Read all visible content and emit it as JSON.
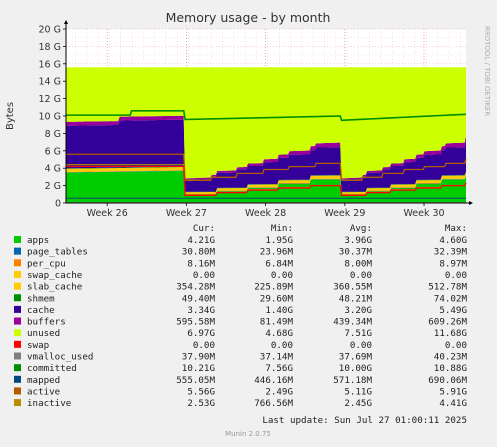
{
  "chart_data": {
    "type": "area",
    "title": "Memory usage - by month",
    "ylabel": "Bytes",
    "xlabel": "",
    "side_label": "RRDTOOL / TOBI OETIKER",
    "ylim": [
      0,
      20
    ],
    "y_unit": "G",
    "yticks": [
      "0",
      "2 G",
      "4 G",
      "6 G",
      "8 G",
      "10 G",
      "12 G",
      "14 G",
      "16 G",
      "18 G",
      "20 G"
    ],
    "xticks": [
      "Week 26",
      "Week 27",
      "Week 28",
      "Week 29",
      "Week 30"
    ],
    "grid": true,
    "legend_columns": [
      "Cur:",
      "Min:",
      "Avg:",
      "Max:"
    ],
    "series": [
      {
        "name": "apps",
        "color": "#00cc00",
        "cur": "4.21G",
        "min": "1.95G",
        "avg": "3.96G",
        "max": "4.60G"
      },
      {
        "name": "page_tables",
        "color": "#0066b3",
        "cur": "30.80M",
        "min": "23.96M",
        "avg": "30.37M",
        "max": "32.39M"
      },
      {
        "name": "per_cpu",
        "color": "#ff8000",
        "cur": "8.16M",
        "min": "6.84M",
        "avg": "8.00M",
        "max": "8.97M"
      },
      {
        "name": "swap_cache",
        "color": "#ffcc00",
        "cur": "0.00",
        "min": "0.00",
        "avg": "0.00",
        "max": "0.00"
      },
      {
        "name": "slab_cache",
        "color": "#ffcc00",
        "cur": "354.28M",
        "min": "225.89M",
        "avg": "360.55M",
        "max": "512.78M"
      },
      {
        "name": "shmem",
        "color": "#008f00",
        "cur": "49.40M",
        "min": "29.60M",
        "avg": "48.21M",
        "max": "74.02M"
      },
      {
        "name": "cache",
        "color": "#330099",
        "cur": "3.34G",
        "min": "1.40G",
        "avg": "3.20G",
        "max": "5.49G"
      },
      {
        "name": "buffers",
        "color": "#990099",
        "cur": "595.58M",
        "min": "81.49M",
        "avg": "439.34M",
        "max": "609.26M"
      },
      {
        "name": "unused",
        "color": "#ccff00",
        "cur": "6.97G",
        "min": "4.68G",
        "avg": "7.51G",
        "max": "11.68G"
      },
      {
        "name": "swap",
        "color": "#ff0000",
        "cur": "0.00",
        "min": "0.00",
        "avg": "0.00",
        "max": "0.00"
      },
      {
        "name": "vmalloc_used",
        "color": "#808080",
        "cur": "37.90M",
        "min": "37.14M",
        "avg": "37.69M",
        "max": "40.23M"
      },
      {
        "name": "committed",
        "color": "#008f00",
        "cur": "10.21G",
        "min": "7.56G",
        "avg": "10.00G",
        "max": "10.88G"
      },
      {
        "name": "mapped",
        "color": "#00487d",
        "cur": "555.05M",
        "min": "446.16M",
        "avg": "571.18M",
        "max": "690.06M"
      },
      {
        "name": "active",
        "color": "#b35a00",
        "cur": "5.56G",
        "min": "2.49G",
        "avg": "5.11G",
        "max": "5.91G"
      },
      {
        "name": "inactive",
        "color": "#b38f00",
        "cur": "2.53G",
        "min": "766.56M",
        "avg": "2.45G",
        "max": "4.41G"
      }
    ],
    "last_update": "Last update: Sun Jul 27 01:00:11 2025",
    "footer": "Munin 2.0.75"
  }
}
